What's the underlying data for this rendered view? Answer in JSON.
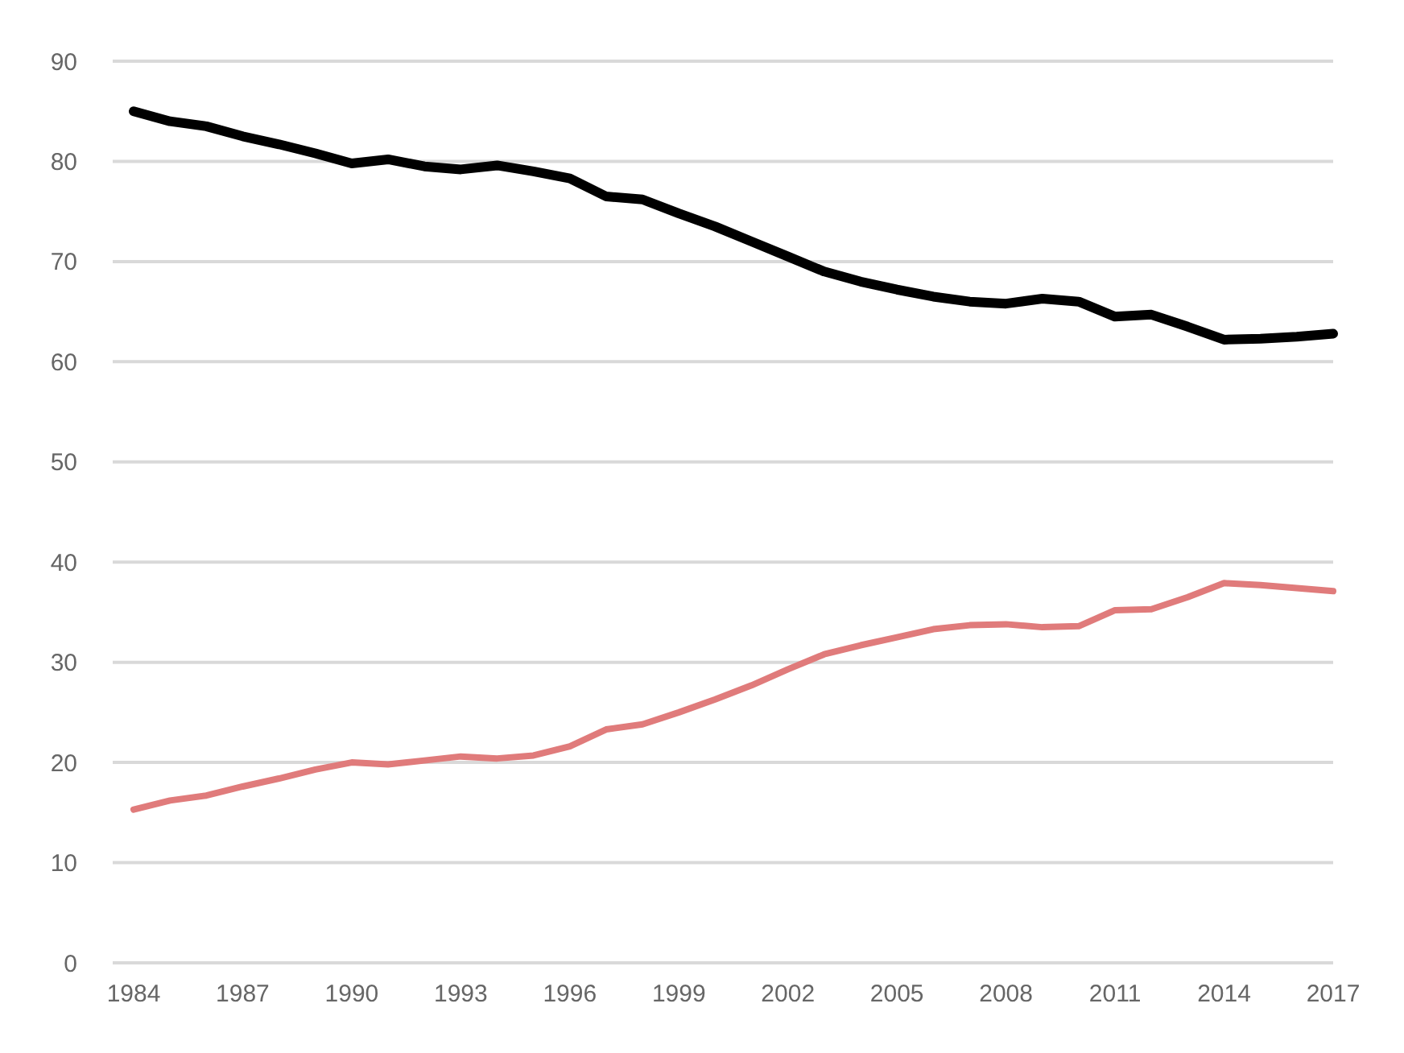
{
  "chart_data": {
    "type": "line",
    "categories": [
      "1984",
      null,
      null,
      "1987",
      null,
      null,
      "1990",
      null,
      null,
      "1993",
      null,
      null,
      "1996",
      null,
      null,
      "1999",
      null,
      null,
      "2002",
      null,
      null,
      "2005",
      null,
      null,
      "2008",
      null,
      null,
      "2011",
      null,
      null,
      "2014",
      null,
      null,
      "2017"
    ],
    "series": [
      {
        "color": "#000000",
        "values": [
          85,
          84,
          83.5,
          82.5,
          81.7,
          80.8,
          79.8,
          80.2,
          79.5,
          79.2,
          79.6,
          79,
          78.3,
          76.5,
          76.2,
          74.8,
          73.5,
          72,
          70.5,
          69,
          68,
          67.2,
          66.5,
          66,
          65.8,
          66.3,
          66,
          64.5,
          64.7,
          63.5,
          62.2,
          62.3,
          62.5,
          62.8
        ]
      },
      {
        "color": "#e07b7b",
        "values": [
          15.3,
          16.2,
          16.7,
          17.6,
          18.4,
          19.3,
          20,
          19.8,
          20.2,
          20.6,
          20.4,
          20.7,
          21.6,
          23.3,
          23.8,
          25,
          26.3,
          27.7,
          29.3,
          30.8,
          31.7,
          32.5,
          33.3,
          33.7,
          33.8,
          33.5,
          33.6,
          35.2,
          35.3,
          36.5,
          37.9,
          37.7,
          37.4,
          37.1
        ]
      }
    ],
    "ylim": [
      0,
      90
    ],
    "yticks": [
      0,
      10,
      20,
      30,
      40,
      50,
      60,
      70,
      80,
      90
    ],
    "grid": "y",
    "marker": "none",
    "line_style": "solid"
  }
}
